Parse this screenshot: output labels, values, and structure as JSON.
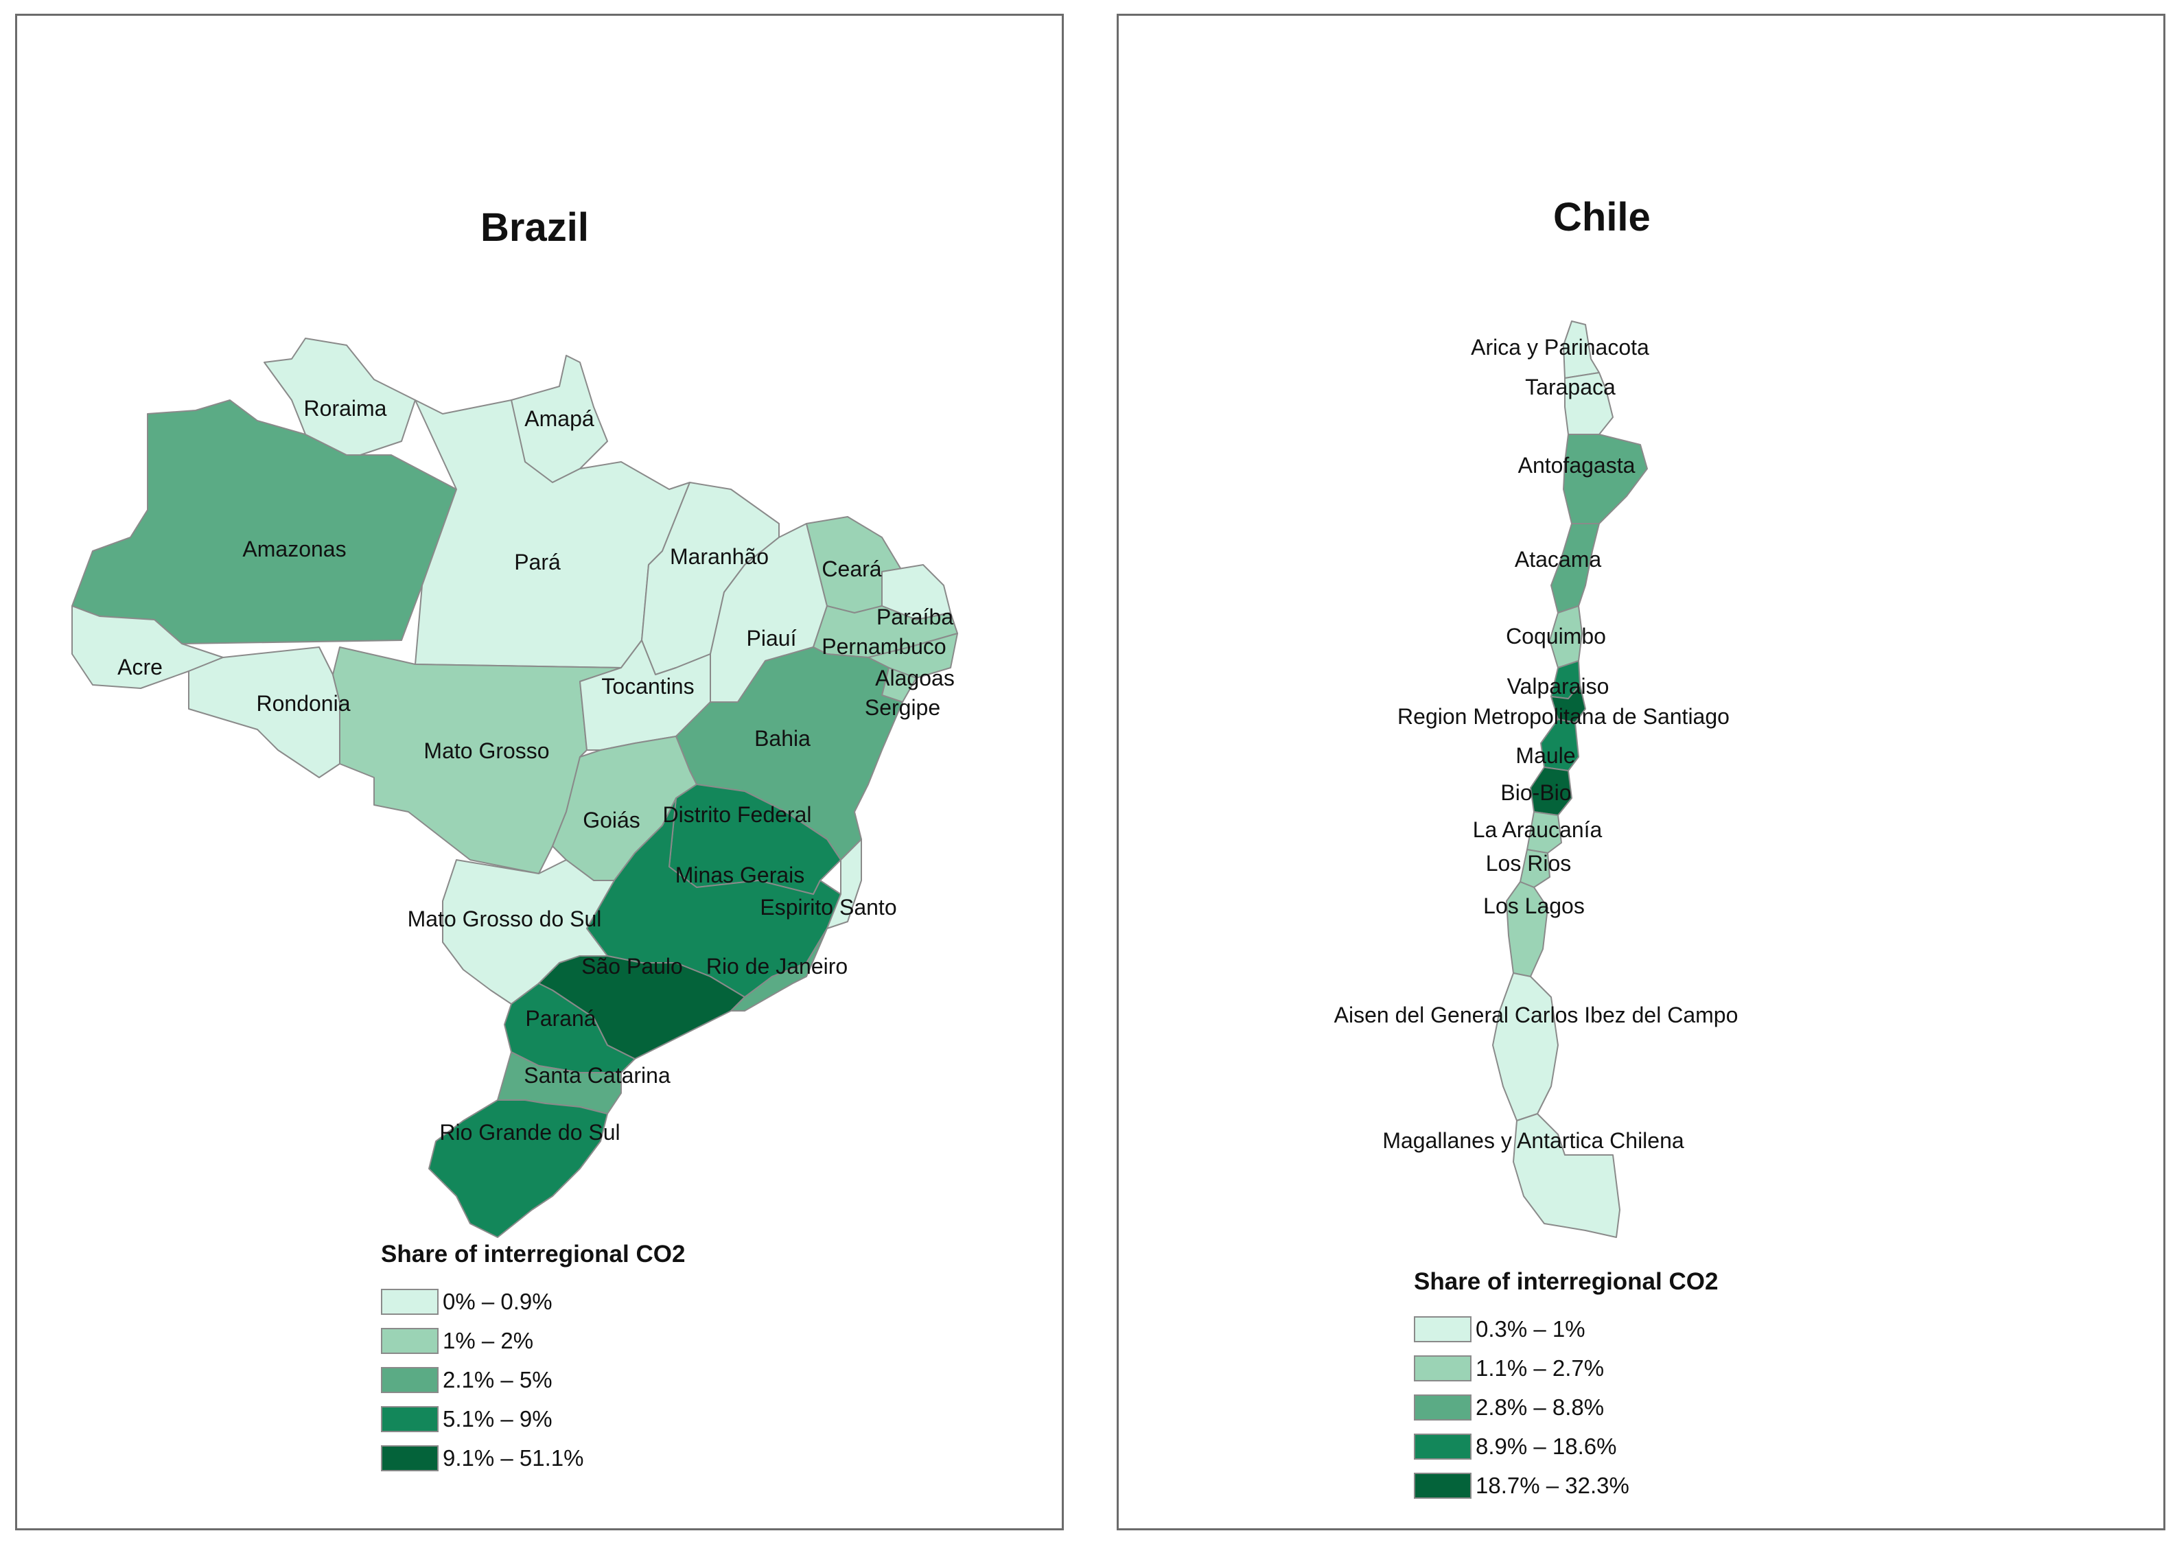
{
  "colors": {
    "class1": "#d4f3e6",
    "class2": "#9bd3b5",
    "class3": "#5bab85",
    "class4": "#13875a",
    "class5": "#04633a",
    "border": "#6b6b6b"
  },
  "brazil": {
    "title": "Brazil",
    "legend_title": "Share of interregional CO2",
    "legend": [
      {
        "label": "0% – 0.9%",
        "class": "class1"
      },
      {
        "label": "1% – 2%",
        "class": "class2"
      },
      {
        "label": "2.1% – 5%",
        "class": "class3"
      },
      {
        "label": "5.1% – 9%",
        "class": "class4"
      },
      {
        "label": "9.1% – 51.1%",
        "class": "class5"
      }
    ],
    "regions": [
      {
        "name": "Roraima",
        "class": "class1"
      },
      {
        "name": "Amapá",
        "class": "class1"
      },
      {
        "name": "Amazonas",
        "class": "class3"
      },
      {
        "name": "Pará",
        "class": "class1"
      },
      {
        "name": "Maranhão",
        "class": "class1"
      },
      {
        "name": "Ceará",
        "class": "class2"
      },
      {
        "name": "Paraíba",
        "class": "class1"
      },
      {
        "name": "Pernambuco",
        "class": "class2"
      },
      {
        "name": "Piauí",
        "class": "class1"
      },
      {
        "name": "Acre",
        "class": "class1"
      },
      {
        "name": "Rondonia",
        "class": "class1"
      },
      {
        "name": "Tocantins",
        "class": "class1"
      },
      {
        "name": "Alagoas",
        "class": "class2"
      },
      {
        "name": "Sergipe",
        "class": "class2"
      },
      {
        "name": "Bahia",
        "class": "class3"
      },
      {
        "name": "Mato Grosso",
        "class": "class2"
      },
      {
        "name": "Goiás",
        "class": "class2"
      },
      {
        "name": "Distrito Federal",
        "class": "class4"
      },
      {
        "name": "Minas Gerais",
        "class": "class4"
      },
      {
        "name": "Espirito Santo",
        "class": "class1"
      },
      {
        "name": "Mato Grosso do Sul",
        "class": "class1"
      },
      {
        "name": "São Paulo",
        "class": "class5"
      },
      {
        "name": "Rio de Janeiro",
        "class": "class3"
      },
      {
        "name": "Paraná",
        "class": "class4"
      },
      {
        "name": "Santa Catarina",
        "class": "class3"
      },
      {
        "name": "Rio Grande do Sul",
        "class": "class4"
      }
    ]
  },
  "chile": {
    "title": "Chile",
    "legend_title": "Share of interregional CO2",
    "legend": [
      {
        "label": "0.3% – 1%",
        "class": "class1"
      },
      {
        "label": "1.1% – 2.7%",
        "class": "class2"
      },
      {
        "label": "2.8% – 8.8%",
        "class": "class3"
      },
      {
        "label": "8.9% – 18.6%",
        "class": "class4"
      },
      {
        "label": "18.7% – 32.3%",
        "class": "class5"
      }
    ],
    "regions": [
      {
        "name": "Arica y Parinacota",
        "class": "class1"
      },
      {
        "name": "Tarapaca",
        "class": "class1"
      },
      {
        "name": "Antofagasta",
        "class": "class3"
      },
      {
        "name": "Atacama",
        "class": "class3"
      },
      {
        "name": "Coquimbo",
        "class": "class2"
      },
      {
        "name": "Valparaiso",
        "class": "class4"
      },
      {
        "name": "Region Metropolitana de Santiago",
        "class": "class5"
      },
      {
        "name": "Maule",
        "class": "class4"
      },
      {
        "name": "Bio-Bio",
        "class": "class5"
      },
      {
        "name": "La Araucanía",
        "class": "class2"
      },
      {
        "name": "Los Rios",
        "class": "class2"
      },
      {
        "name": "Los Lagos",
        "class": "class2"
      },
      {
        "name": "Aisen del General Carlos Ibez del Campo",
        "class": "class1"
      },
      {
        "name": "Magallanes y Antartica Chilena",
        "class": "class1"
      }
    ]
  }
}
